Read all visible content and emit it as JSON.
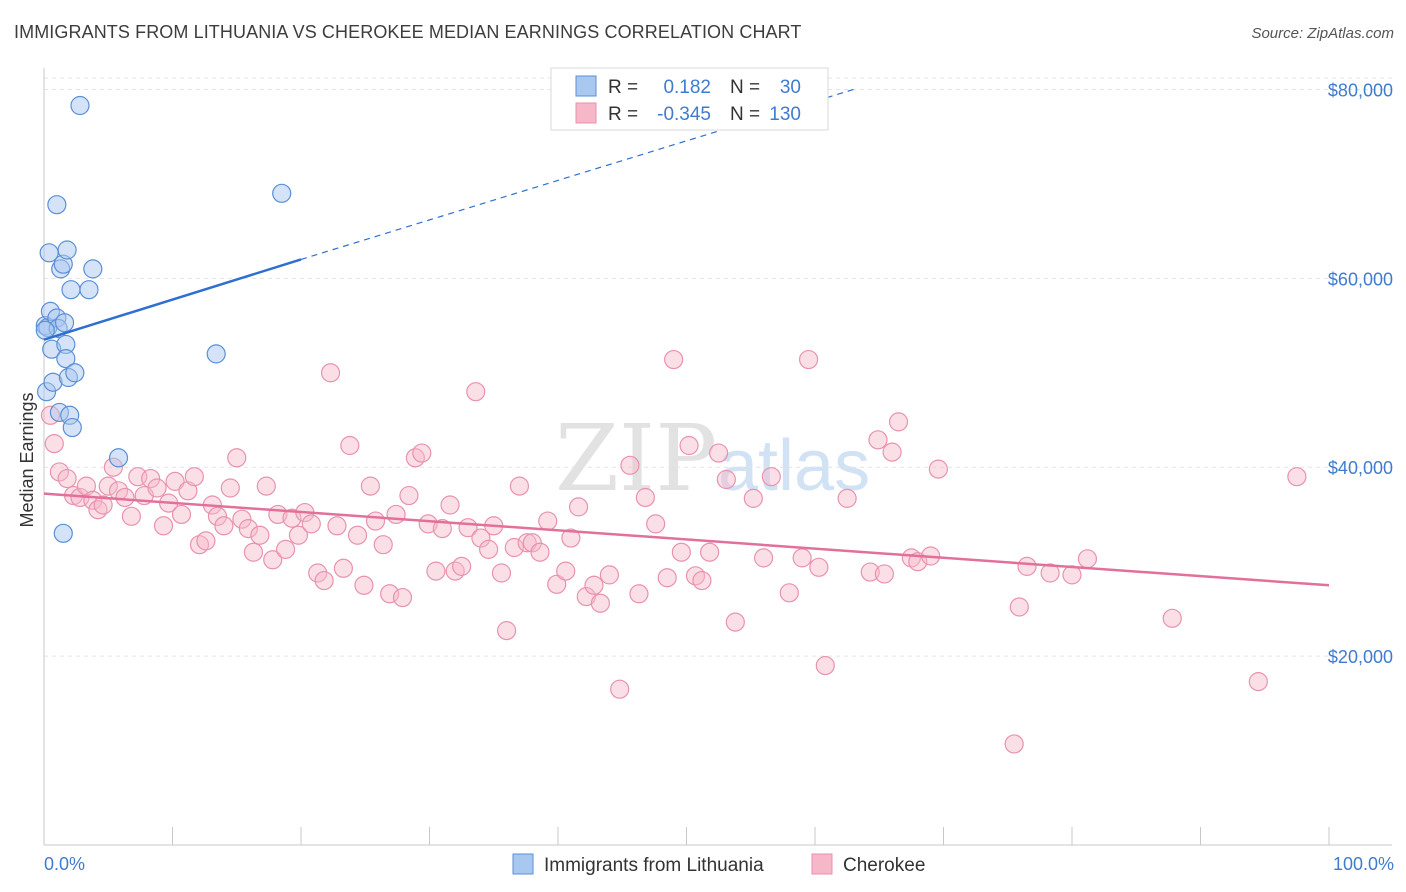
{
  "title": "IMMIGRANTS FROM LITHUANIA VS CHEROKEE MEDIAN EARNINGS CORRELATION CHART",
  "source": "Source: ZipAtlas.com",
  "watermark": {
    "zip": "ZIP",
    "atlas": "atlas"
  },
  "colors": {
    "blue_fill": "#a9c8f0",
    "blue_stroke": "#5b8fd6",
    "blue_line": "#2e6fcf",
    "pink_fill": "#f6b7c9",
    "pink_stroke": "#e892ae",
    "pink_line": "#e2709a",
    "accent_text": "#3f7ccf"
  },
  "legend": {
    "rows": [
      {
        "r_label": "R =",
        "r_value": "0.182",
        "n_label": "N =",
        "n_value": "30"
      },
      {
        "r_label": "R =",
        "r_value": "-0.345",
        "n_label": "N =",
        "n_value": "130"
      }
    ]
  },
  "bottom_legend": [
    "Immigrants from Lithuania",
    "Cherokee"
  ],
  "chart_data": {
    "type": "scatter",
    "title": "IMMIGRANTS FROM LITHUANIA VS CHEROKEE MEDIAN EARNINGS CORRELATION CHART",
    "xlabel": "",
    "ylabel": "Median Earnings",
    "xlim": [
      0,
      100
    ],
    "ylim": [
      0,
      81000
    ],
    "x_tick_labels": [
      "0.0%",
      "100.0%"
    ],
    "y_ticks": [
      20000,
      40000,
      60000,
      80000
    ],
    "y_tick_labels": [
      "$20,000",
      "$40,000",
      "$60,000",
      "$80,000"
    ],
    "series": [
      {
        "name": "Immigrants from Lithuania",
        "R": 0.182,
        "N": 30,
        "trend": {
          "x0": 0,
          "y0": 53500,
          "x1": 20,
          "y1": 62000,
          "dash_to_x": 63,
          "dash_to_y": 80000
        },
        "points": [
          [
            0.1,
            55000
          ],
          [
            0.2,
            48000
          ],
          [
            0.3,
            54800
          ],
          [
            0.4,
            62700
          ],
          [
            0.5,
            56500
          ],
          [
            0.6,
            52500
          ],
          [
            0.7,
            49000
          ],
          [
            1.0,
            67800
          ],
          [
            1.0,
            55800
          ],
          [
            1.1,
            54700
          ],
          [
            1.2,
            45800
          ],
          [
            1.3,
            61000
          ],
          [
            1.5,
            61500
          ],
          [
            1.5,
            33000
          ],
          [
            1.6,
            55300
          ],
          [
            1.7,
            53000
          ],
          [
            1.7,
            51500
          ],
          [
            1.8,
            63000
          ],
          [
            1.9,
            49500
          ],
          [
            2.0,
            45500
          ],
          [
            2.1,
            58800
          ],
          [
            2.2,
            44200
          ],
          [
            2.4,
            50000
          ],
          [
            2.8,
            78300
          ],
          [
            3.5,
            58800
          ],
          [
            3.8,
            61000
          ],
          [
            5.8,
            41000
          ],
          [
            13.4,
            52000
          ],
          [
            18.5,
            69000
          ],
          [
            0.1,
            54500
          ]
        ]
      },
      {
        "name": "Cherokee",
        "R": -0.345,
        "N": 130,
        "trend": {
          "x0": 0,
          "y0": 37200,
          "x1": 100,
          "y1": 27500
        },
        "points": [
          [
            0.5,
            45500
          ],
          [
            0.8,
            42500
          ],
          [
            1.2,
            39500
          ],
          [
            1.8,
            38800
          ],
          [
            2.3,
            37000
          ],
          [
            2.8,
            36800
          ],
          [
            3.3,
            38000
          ],
          [
            3.8,
            36500
          ],
          [
            4.2,
            35500
          ],
          [
            4.6,
            36000
          ],
          [
            5.0,
            38000
          ],
          [
            5.4,
            40000
          ],
          [
            5.8,
            37500
          ],
          [
            6.3,
            36800
          ],
          [
            6.8,
            34800
          ],
          [
            7.3,
            39000
          ],
          [
            7.8,
            37000
          ],
          [
            8.3,
            38800
          ],
          [
            8.8,
            37800
          ],
          [
            9.3,
            33800
          ],
          [
            9.7,
            36200
          ],
          [
            10.2,
            38500
          ],
          [
            10.7,
            35000
          ],
          [
            11.2,
            37500
          ],
          [
            11.7,
            39000
          ],
          [
            12.1,
            31800
          ],
          [
            12.6,
            32200
          ],
          [
            13.1,
            36000
          ],
          [
            13.5,
            34800
          ],
          [
            14.0,
            33800
          ],
          [
            14.5,
            37800
          ],
          [
            15.0,
            41000
          ],
          [
            15.4,
            34500
          ],
          [
            15.9,
            33500
          ],
          [
            16.3,
            31000
          ],
          [
            16.8,
            32800
          ],
          [
            17.3,
            38000
          ],
          [
            17.8,
            30200
          ],
          [
            18.2,
            35000
          ],
          [
            18.8,
            31300
          ],
          [
            19.3,
            34600
          ],
          [
            19.8,
            32800
          ],
          [
            20.3,
            35200
          ],
          [
            20.8,
            34000
          ],
          [
            21.3,
            28800
          ],
          [
            21.8,
            28000
          ],
          [
            22.3,
            50000
          ],
          [
            22.8,
            33800
          ],
          [
            23.3,
            29300
          ],
          [
            23.8,
            42300
          ],
          [
            24.4,
            32800
          ],
          [
            24.9,
            27500
          ],
          [
            25.4,
            38000
          ],
          [
            25.8,
            34300
          ],
          [
            26.4,
            31800
          ],
          [
            26.9,
            26600
          ],
          [
            27.4,
            35000
          ],
          [
            27.9,
            26200
          ],
          [
            28.4,
            37000
          ],
          [
            28.9,
            41000
          ],
          [
            29.4,
            41500
          ],
          [
            29.9,
            34000
          ],
          [
            30.5,
            29000
          ],
          [
            31.0,
            33500
          ],
          [
            31.6,
            36000
          ],
          [
            32.0,
            29000
          ],
          [
            32.5,
            29500
          ],
          [
            33.0,
            33600
          ],
          [
            33.6,
            48000
          ],
          [
            34.0,
            32500
          ],
          [
            34.6,
            31300
          ],
          [
            35.0,
            33800
          ],
          [
            35.6,
            28800
          ],
          [
            36.0,
            22700
          ],
          [
            36.6,
            31500
          ],
          [
            37.0,
            38000
          ],
          [
            37.6,
            32000
          ],
          [
            38.0,
            32000
          ],
          [
            38.6,
            31000
          ],
          [
            39.2,
            34300
          ],
          [
            39.9,
            27600
          ],
          [
            40.6,
            29000
          ],
          [
            41.0,
            32500
          ],
          [
            41.6,
            35800
          ],
          [
            42.2,
            26300
          ],
          [
            42.8,
            27500
          ],
          [
            43.3,
            25600
          ],
          [
            44.0,
            28600
          ],
          [
            44.8,
            16500
          ],
          [
            45.6,
            40200
          ],
          [
            46.3,
            26600
          ],
          [
            46.8,
            36800
          ],
          [
            47.6,
            34000
          ],
          [
            48.5,
            28300
          ],
          [
            49.0,
            51400
          ],
          [
            49.6,
            31000
          ],
          [
            50.2,
            42300
          ],
          [
            50.7,
            28500
          ],
          [
            51.2,
            28000
          ],
          [
            51.8,
            31000
          ],
          [
            52.5,
            41500
          ],
          [
            53.1,
            38700
          ],
          [
            53.8,
            23600
          ],
          [
            55.2,
            36700
          ],
          [
            56.0,
            30400
          ],
          [
            56.6,
            39000
          ],
          [
            58.0,
            26700
          ],
          [
            59.0,
            30400
          ],
          [
            59.5,
            51400
          ],
          [
            60.3,
            29400
          ],
          [
            60.8,
            19000
          ],
          [
            62.5,
            36700
          ],
          [
            64.3,
            28900
          ],
          [
            64.9,
            42900
          ],
          [
            65.4,
            28700
          ],
          [
            66.0,
            41600
          ],
          [
            66.5,
            44800
          ],
          [
            67.5,
            30400
          ],
          [
            68.0,
            30000
          ],
          [
            69.0,
            30600
          ],
          [
            69.6,
            39800
          ],
          [
            75.5,
            10700
          ],
          [
            75.9,
            25200
          ],
          [
            76.5,
            29500
          ],
          [
            78.3,
            28800
          ],
          [
            80.0,
            28600
          ],
          [
            81.2,
            30300
          ],
          [
            87.8,
            24000
          ],
          [
            94.5,
            17300
          ],
          [
            97.5,
            39000
          ]
        ]
      }
    ]
  }
}
